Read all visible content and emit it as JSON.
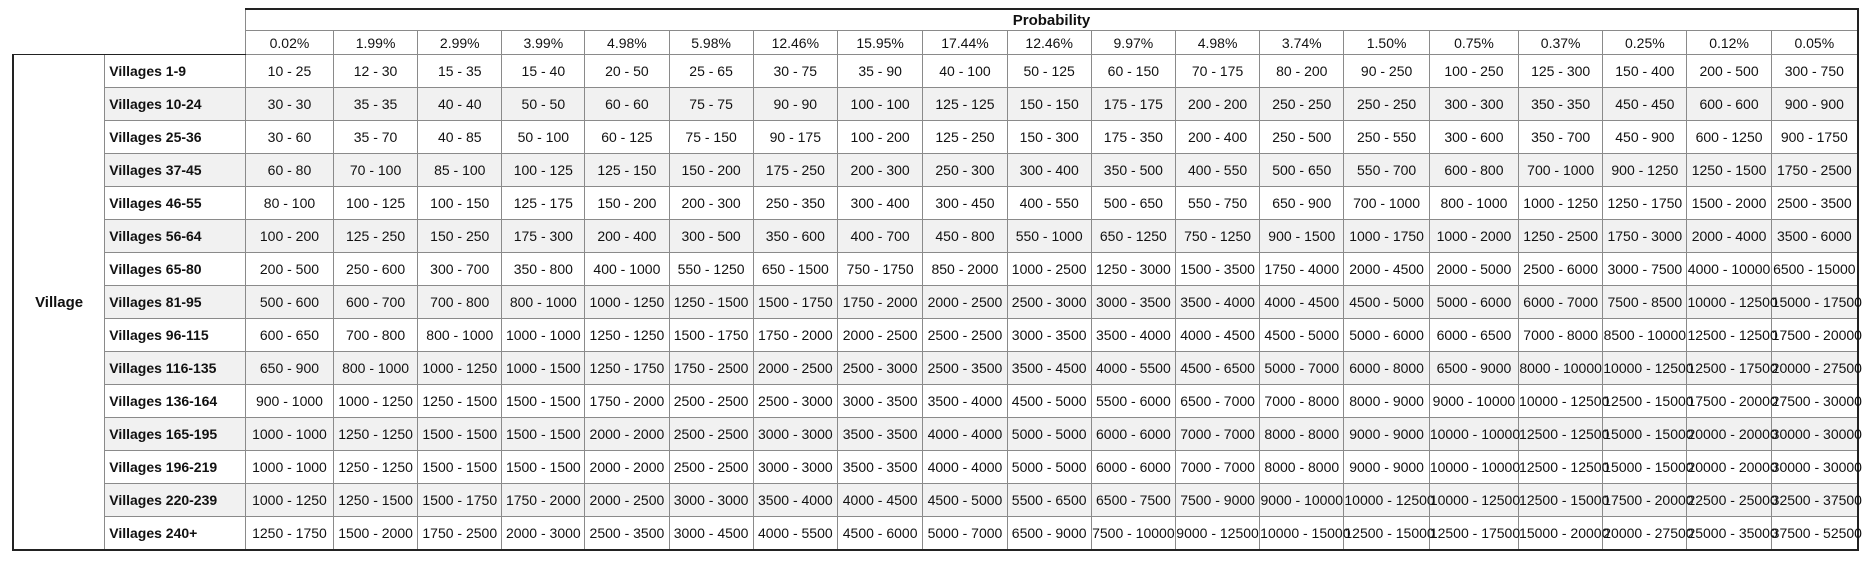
{
  "header": {
    "title": "Probability",
    "group_label": "Village"
  },
  "probabilities": [
    "0.02%",
    "1.99%",
    "2.99%",
    "3.99%",
    "4.98%",
    "5.98%",
    "12.46%",
    "15.95%",
    "17.44%",
    "12.46%",
    "9.97%",
    "4.98%",
    "3.74%",
    "1.50%",
    "0.75%",
    "0.37%",
    "0.25%",
    "0.12%",
    "0.05%"
  ],
  "rows": [
    {
      "label": "Villages 1-9",
      "values": [
        "10 - 25",
        "12 - 30",
        "15 - 35",
        "15 - 40",
        "20 - 50",
        "25 - 65",
        "30 - 75",
        "35 - 90",
        "40 - 100",
        "50 - 125",
        "60 - 150",
        "70 - 175",
        "80 - 200",
        "90 - 250",
        "100 - 250",
        "125 - 300",
        "150 - 400",
        "200 - 500",
        "300 - 750"
      ]
    },
    {
      "label": "Villages 10-24",
      "values": [
        "30 - 30",
        "35 - 35",
        "40 - 40",
        "50 - 50",
        "60 - 60",
        "75 - 75",
        "90 - 90",
        "100 - 100",
        "125 - 125",
        "150 - 150",
        "175 - 175",
        "200 - 200",
        "250 - 250",
        "250 - 250",
        "300 - 300",
        "350 - 350",
        "450 - 450",
        "600 - 600",
        "900 - 900"
      ]
    },
    {
      "label": "Villages 25-36",
      "values": [
        "30 - 60",
        "35 - 70",
        "40 - 85",
        "50 - 100",
        "60 - 125",
        "75 - 150",
        "90 - 175",
        "100 - 200",
        "125 - 250",
        "150 - 300",
        "175 - 350",
        "200 - 400",
        "250 - 500",
        "250 - 550",
        "300 - 600",
        "350 - 700",
        "450 - 900",
        "600 - 1250",
        "900 - 1750"
      ]
    },
    {
      "label": "Villages 37-45",
      "values": [
        "60 - 80",
        "70 - 100",
        "85 - 100",
        "100 - 125",
        "125 - 150",
        "150 - 200",
        "175 - 250",
        "200 - 300",
        "250 - 300",
        "300 - 400",
        "350 - 500",
        "400 - 550",
        "500 - 650",
        "550 - 700",
        "600 - 800",
        "700 - 1000",
        "900 - 1250",
        "1250 - 1500",
        "1750 - 2500"
      ]
    },
    {
      "label": "Villages 46-55",
      "values": [
        "80 - 100",
        "100 - 125",
        "100 - 150",
        "125 - 175",
        "150 - 200",
        "200 - 300",
        "250 - 350",
        "300 - 400",
        "300 - 450",
        "400 - 550",
        "500 - 650",
        "550 - 750",
        "650 - 900",
        "700 - 1000",
        "800 - 1000",
        "1000 - 1250",
        "1250 - 1750",
        "1500 - 2000",
        "2500 - 3500"
      ]
    },
    {
      "label": "Villages 56-64",
      "values": [
        "100 - 200",
        "125 - 250",
        "150 - 250",
        "175 - 300",
        "200 - 400",
        "300 - 500",
        "350 - 600",
        "400 - 700",
        "450 - 800",
        "550 - 1000",
        "650 - 1250",
        "750 - 1250",
        "900 - 1500",
        "1000 - 1750",
        "1000 - 2000",
        "1250 - 2500",
        "1750 - 3000",
        "2000 - 4000",
        "3500 - 6000"
      ]
    },
    {
      "label": "Villages 65-80",
      "values": [
        "200 - 500",
        "250 - 600",
        "300 - 700",
        "350 - 800",
        "400 - 1000",
        "550 - 1250",
        "650 - 1500",
        "750 - 1750",
        "850 - 2000",
        "1000 - 2500",
        "1250 - 3000",
        "1500 - 3500",
        "1750 - 4000",
        "2000 - 4500",
        "2000 - 5000",
        "2500 - 6000",
        "3000 - 7500",
        "4000 - 10000",
        "6500 - 15000"
      ]
    },
    {
      "label": "Villages 81-95",
      "values": [
        "500 - 600",
        "600 - 700",
        "700 - 800",
        "800 - 1000",
        "1000 - 1250",
        "1250 - 1500",
        "1500 - 1750",
        "1750 - 2000",
        "2000 - 2500",
        "2500 - 3000",
        "3000 - 3500",
        "3500 - 4000",
        "4000 - 4500",
        "4500 - 5000",
        "5000 - 6000",
        "6000 - 7000",
        "7500 - 8500",
        "10000 - 12500",
        "15000 - 17500"
      ]
    },
    {
      "label": "Villages 96-115",
      "values": [
        "600 - 650",
        "700 - 800",
        "800 - 1000",
        "1000 - 1000",
        "1250 - 1250",
        "1500 - 1750",
        "1750 - 2000",
        "2000 - 2500",
        "2500 - 2500",
        "3000 - 3500",
        "3500 - 4000",
        "4000 - 4500",
        "4500 - 5000",
        "5000 - 6000",
        "6000 - 6500",
        "7000 - 8000",
        "8500 - 10000",
        "12500 - 12500",
        "17500 - 20000"
      ]
    },
    {
      "label": "Villages 116-135",
      "values": [
        "650 - 900",
        "800 - 1000",
        "1000 - 1250",
        "1000 - 1500",
        "1250 - 1750",
        "1750 - 2500",
        "2000 - 2500",
        "2500 - 3000",
        "2500 - 3500",
        "3500 - 4500",
        "4000 - 5500",
        "4500 - 6500",
        "5000 - 7000",
        "6000 - 8000",
        "6500 - 9000",
        "8000 - 10000",
        "10000 - 12500",
        "12500 - 17500",
        "20000 - 27500"
      ]
    },
    {
      "label": "Villages 136-164",
      "values": [
        "900 - 1000",
        "1000 - 1250",
        "1250 - 1500",
        "1500 - 1500",
        "1750 - 2000",
        "2500 - 2500",
        "2500 - 3000",
        "3000 - 3500",
        "3500 - 4000",
        "4500 - 5000",
        "5500 - 6000",
        "6500 - 7000",
        "7000 - 8000",
        "8000 - 9000",
        "9000 - 10000",
        "10000 - 12500",
        "12500 - 15000",
        "17500 - 20000",
        "27500 - 30000"
      ]
    },
    {
      "label": "Villages 165-195",
      "values": [
        "1000 - 1000",
        "1250 - 1250",
        "1500 - 1500",
        "1500 - 1500",
        "2000 - 2000",
        "2500 - 2500",
        "3000 - 3000",
        "3500 - 3500",
        "4000 - 4000",
        "5000 - 5000",
        "6000 - 6000",
        "7000 - 7000",
        "8000 - 8000",
        "9000 - 9000",
        "10000 - 10000",
        "12500 - 12500",
        "15000 - 15000",
        "20000 - 20000",
        "30000 - 30000"
      ]
    },
    {
      "label": "Villages 196-219",
      "values": [
        "1000 - 1000",
        "1250 - 1250",
        "1500 - 1500",
        "1500 - 1500",
        "2000 - 2000",
        "2500 - 2500",
        "3000 - 3000",
        "3500 - 3500",
        "4000 - 4000",
        "5000 - 5000",
        "6000 - 6000",
        "7000 - 7000",
        "8000 - 8000",
        "9000 - 9000",
        "10000 - 10000",
        "12500 - 12500",
        "15000 - 15000",
        "20000 - 20000",
        "30000 - 30000"
      ]
    },
    {
      "label": "Villages 220-239",
      "values": [
        "1000 - 1250",
        "1250 - 1500",
        "1500 - 1750",
        "1750 - 2000",
        "2000 - 2500",
        "3000 - 3000",
        "3500 - 4000",
        "4000 - 4500",
        "4500 - 5000",
        "5500 - 6500",
        "6500 - 7500",
        "7500 - 9000",
        "9000 - 10000",
        "10000 - 12500",
        "10000 - 12500",
        "12500 - 15000",
        "17500 - 20000",
        "22500 - 25000",
        "32500 - 37500"
      ]
    },
    {
      "label": "Villages 240+",
      "values": [
        "1250 - 1750",
        "1500 - 2000",
        "1750 - 2500",
        "2000 - 3000",
        "2500 - 3500",
        "3000 - 4500",
        "4000 - 5500",
        "4500 - 6000",
        "5000 - 7000",
        "6500 - 9000",
        "7500 - 10000",
        "9000 - 12500",
        "10000 - 15000",
        "12500 - 15000",
        "12500 - 17500",
        "15000 - 20000",
        "20000 - 27500",
        "25000 - 35000",
        "37500 - 52500"
      ]
    }
  ]
}
